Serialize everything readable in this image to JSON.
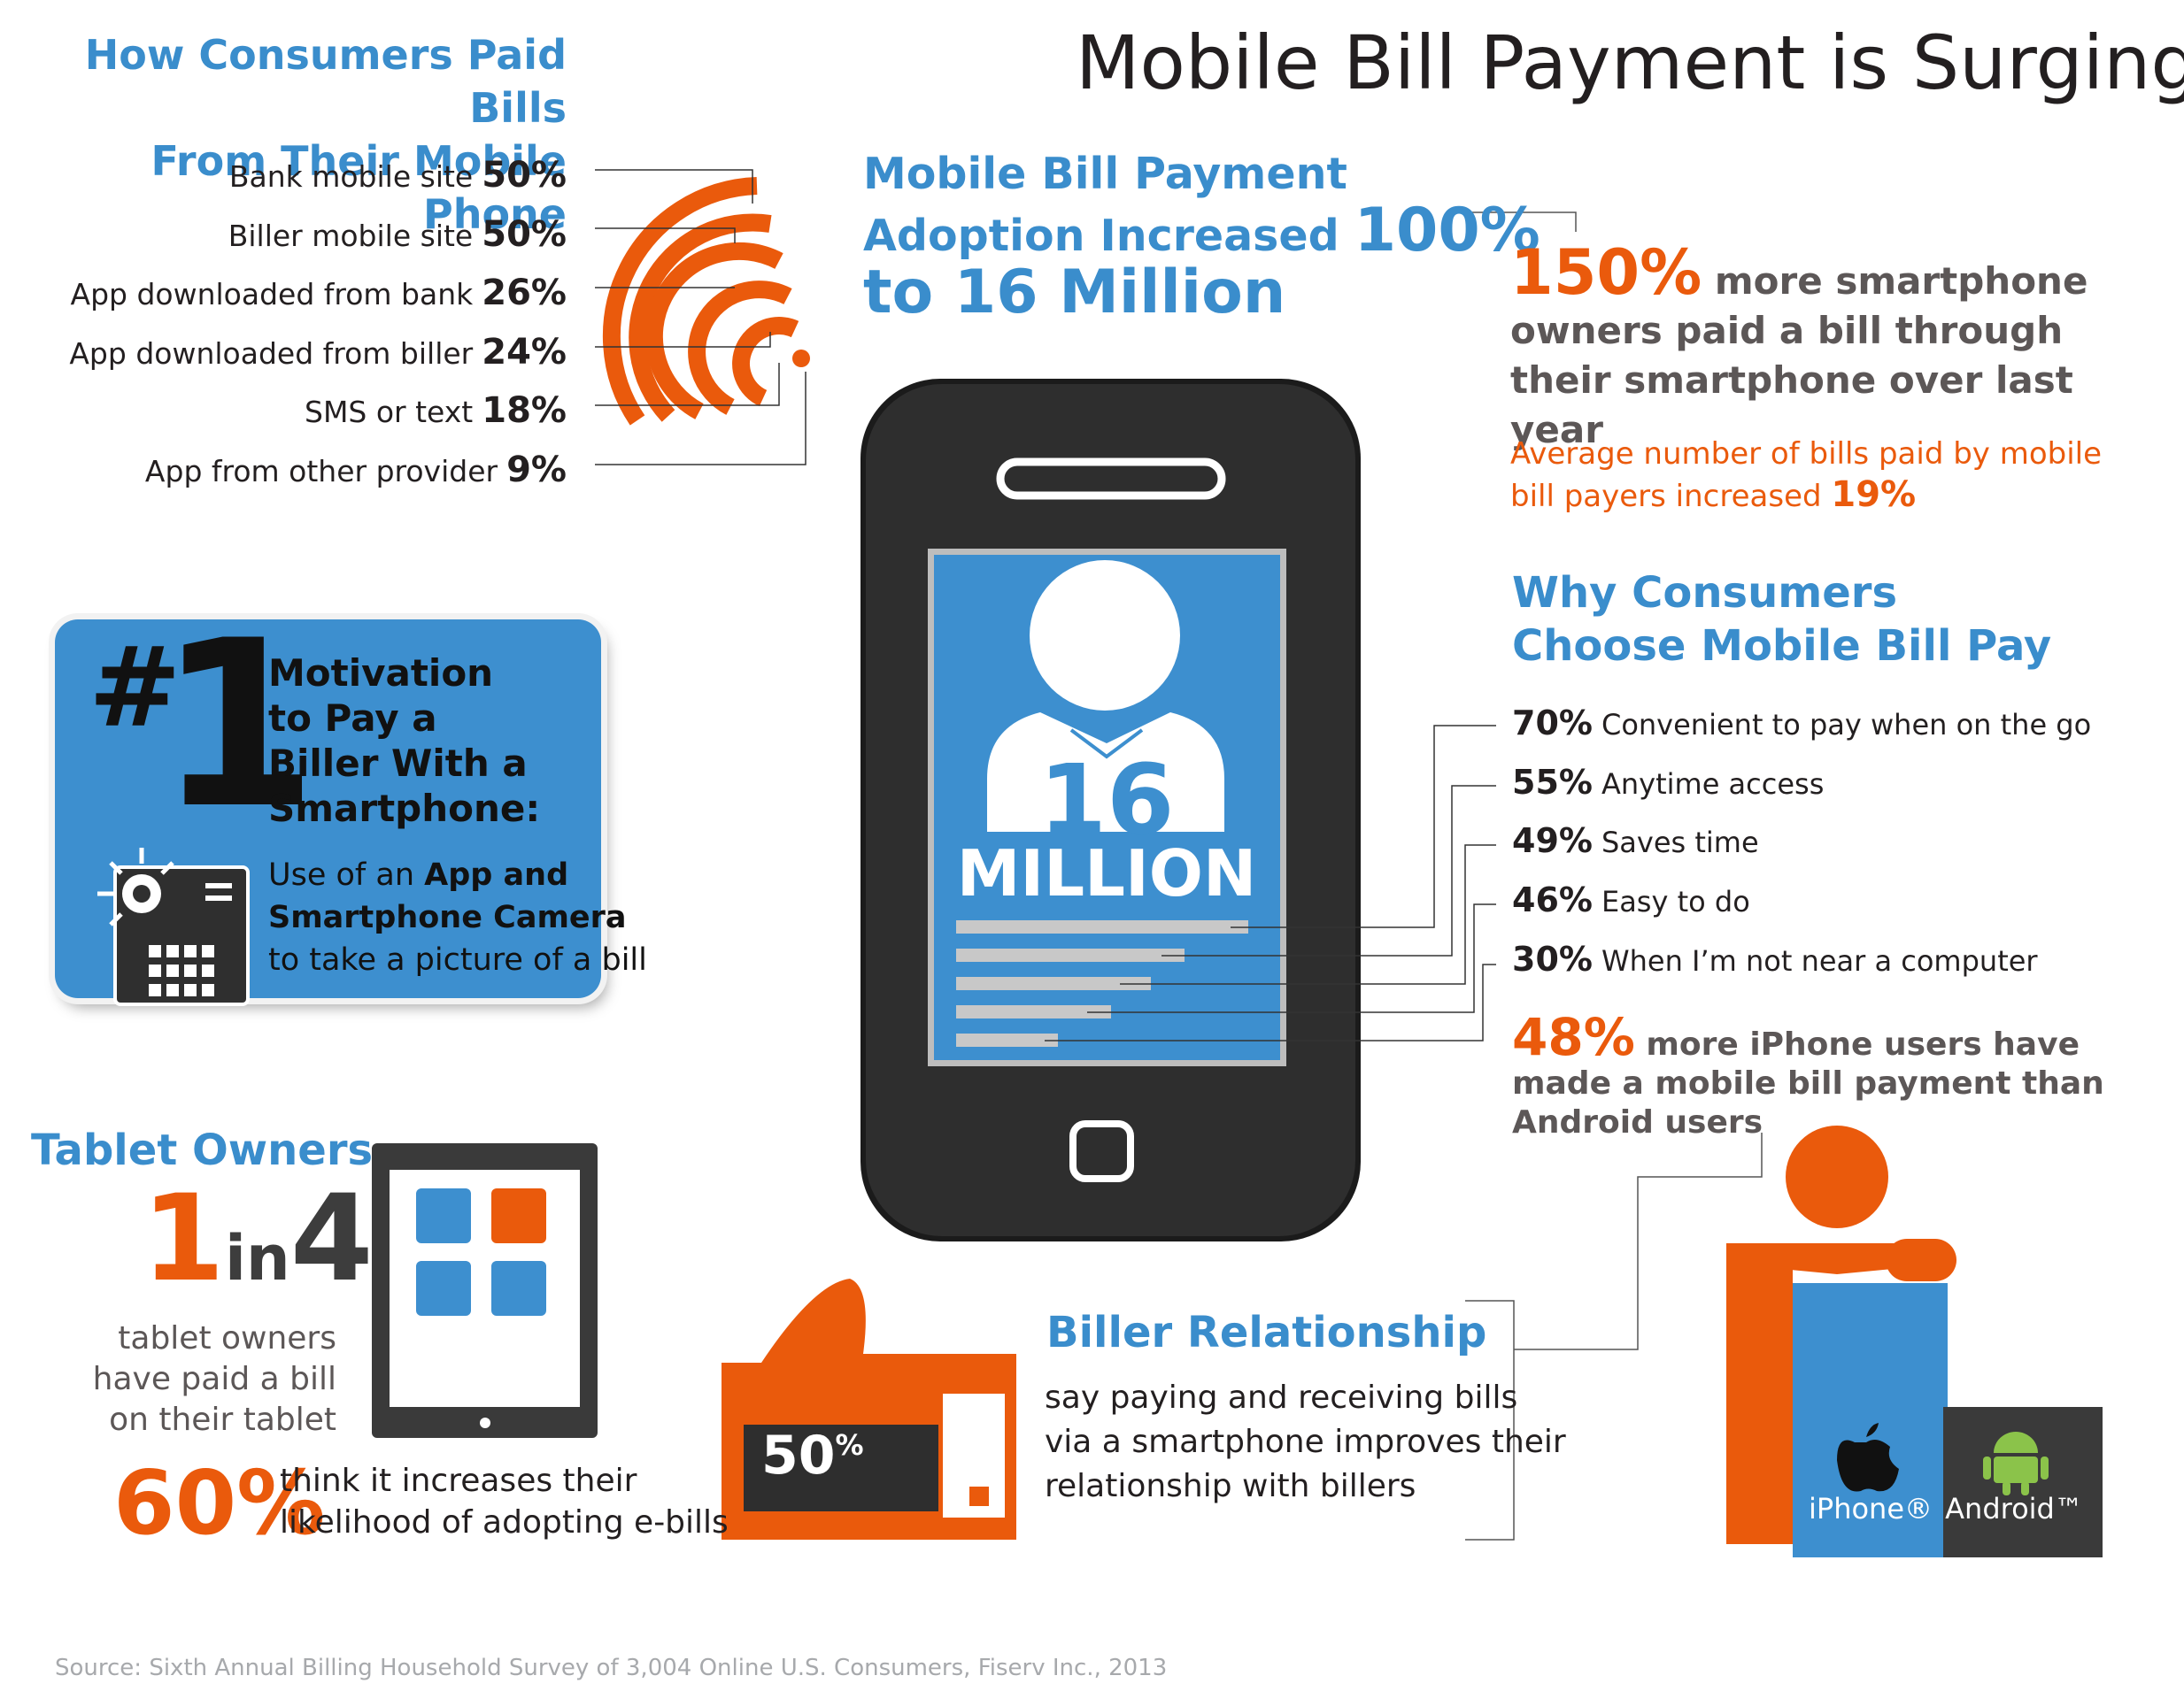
{
  "title": "Mobile Bill Payment is Surging",
  "how_paid": {
    "title_line1": "How Consumers Paid Bills",
    "title_line2": "From Their Mobile Phone",
    "items": [
      {
        "label": "Bank mobile site",
        "pct": "50%"
      },
      {
        "label": "Biller mobile site",
        "pct": "50%"
      },
      {
        "label": "App downloaded from bank",
        "pct": "26%"
      },
      {
        "label": "App downloaded from biller",
        "pct": "24%"
      },
      {
        "label": "SMS or text",
        "pct": "18%"
      },
      {
        "label": "App from other provider",
        "pct": "9%"
      }
    ]
  },
  "adoption": {
    "line1": "Mobile Bill Payment",
    "line2": "Adoption Increased",
    "pct": "100%",
    "line3": "to 16 Million"
  },
  "phone": {
    "number": "16",
    "unit": "MILLION"
  },
  "smartphone_stat": {
    "pct": "150%",
    "text": "more smartphone owners paid a bill through their smartphone over last year"
  },
  "avg_bills": {
    "text": "Average number of bills paid by mobile bill payers increased",
    "pct": "19%"
  },
  "why": {
    "title_line1": "Why Consumers",
    "title_line2": "Choose Mobile Bill Pay",
    "items": [
      {
        "pct": "70%",
        "label": "Convenient to pay when on the go"
      },
      {
        "pct": "55%",
        "label": "Anytime access"
      },
      {
        "pct": "49%",
        "label": "Saves time"
      },
      {
        "pct": "46%",
        "label": "Easy to do"
      },
      {
        "pct": "30%",
        "label": "When I’m not near a computer"
      }
    ]
  },
  "iphone_stat": {
    "pct": "48%",
    "text": "more iPhone users have made a mobile bill payment than Android users"
  },
  "platforms": {
    "iphone": "iPhone®",
    "android": "Android™"
  },
  "motivation": {
    "hash": "#",
    "number": "1",
    "line1": "Motivation",
    "line2": "to Pay a",
    "line3": "Biller With a",
    "line4": "Smartphone:",
    "sub_pre": "Use of an",
    "sub_bold1": "App and",
    "sub_bold2": "Smartphone Camera",
    "sub_post": "to take a picture of a bill"
  },
  "tablet": {
    "title": "Tablet Owners",
    "n1": "1",
    "in": "in",
    "n4": "4",
    "line1": "tablet owners",
    "line2": "have paid a bill",
    "line3": "on their tablet",
    "pct60": "60%",
    "pct60_line1": "think it increases their",
    "pct60_line2": "likelihood of adopting e-bills"
  },
  "biller": {
    "title": "Biller Relationship",
    "line1": "say paying and receiving bills",
    "line2": "via a smartphone improves their",
    "line3": "relationship with billers",
    "pct_num": "50",
    "pct_sign": "%"
  },
  "source": "Source: Sixth Annual Billing Household Survey of 3,004 Online U.S. Consumers, Fiserv Inc., 2013",
  "colors": {
    "blue": "#3a8dcc",
    "orange": "#ea5a0c",
    "dark": "#231f20",
    "phone": "#2b2b2b"
  }
}
